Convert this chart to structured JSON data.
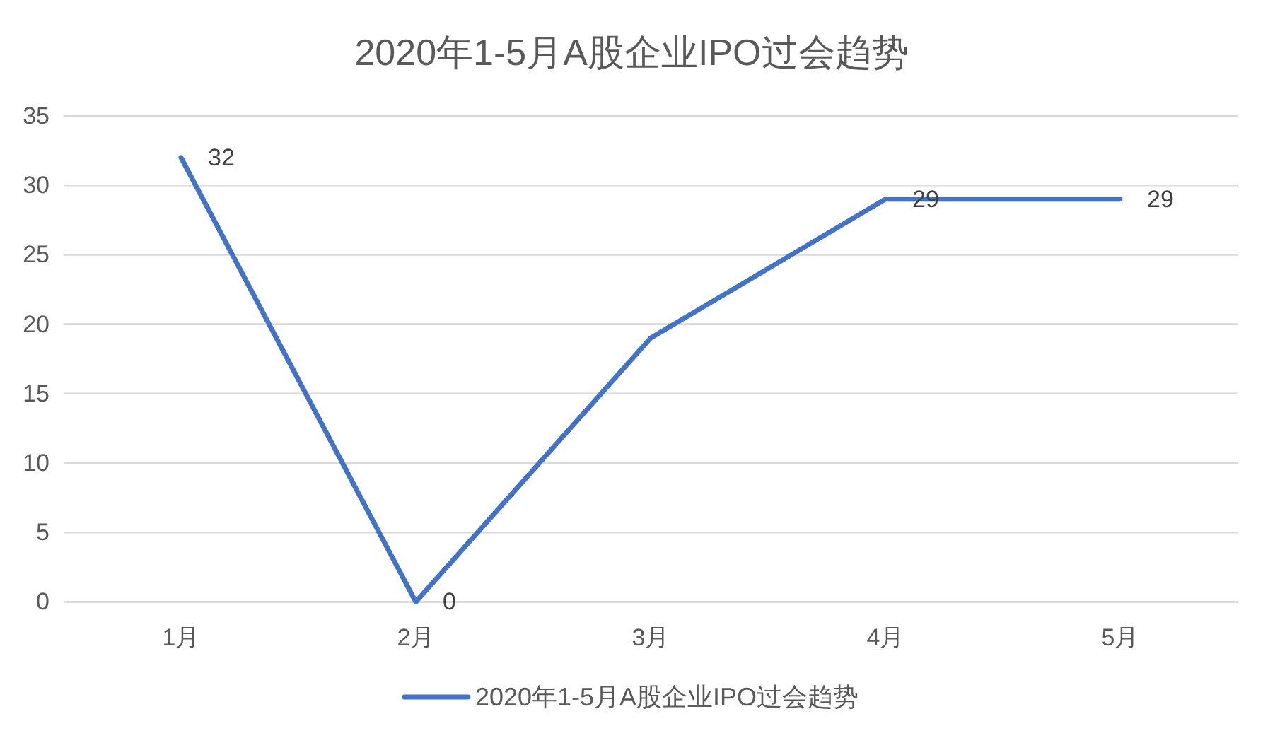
{
  "chart_data": {
    "type": "line",
    "title": "2020年1-5月A股企业IPO过会趋势",
    "categories": [
      "1月",
      "2月",
      "3月",
      "4月",
      "5月"
    ],
    "series": [
      {
        "name": "2020年1-5月A股企业IPO过会趋势",
        "color": "#4472c4",
        "values": [
          32,
          0,
          19,
          29,
          29
        ],
        "value_labels": [
          "32",
          "0",
          null,
          "29",
          "29"
        ]
      }
    ],
    "ylim": [
      0,
      35
    ],
    "yticks": [
      0,
      5,
      10,
      15,
      20,
      25,
      30,
      35
    ],
    "grid": "y",
    "legend": "bottom",
    "marker": "none",
    "line_style": "solid"
  }
}
